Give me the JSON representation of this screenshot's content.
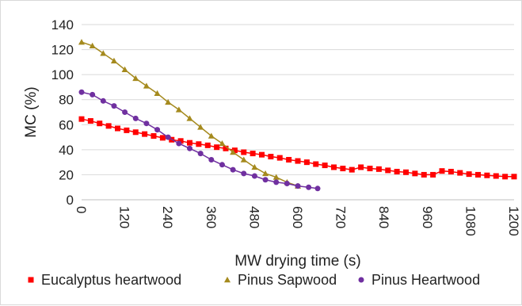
{
  "chart_data": {
    "type": "scatter",
    "title": "",
    "xlabel": "MW drying time (s)",
    "ylabel": "MC (%)",
    "xlim": [
      0,
      1200
    ],
    "ylim": [
      0,
      140
    ],
    "xticks": [
      0,
      120,
      240,
      360,
      480,
      600,
      720,
      840,
      960,
      1080,
      1200
    ],
    "yticks": [
      0,
      20,
      40,
      60,
      80,
      100,
      120,
      140
    ],
    "grid": "horizontal",
    "legend_position": "bottom",
    "trendlines": true,
    "series": [
      {
        "name": "Eucalyptus heartwood",
        "color": "#ff0000",
        "marker": "square",
        "x": [
          0,
          25,
          50,
          75,
          100,
          125,
          150,
          175,
          200,
          225,
          250,
          275,
          300,
          325,
          350,
          375,
          400,
          425,
          450,
          475,
          500,
          525,
          550,
          575,
          600,
          625,
          650,
          675,
          700,
          725,
          750,
          775,
          800,
          825,
          850,
          875,
          900,
          925,
          950,
          975,
          1000,
          1025,
          1050,
          1075,
          1100,
          1125,
          1150,
          1175,
          1200
        ],
        "y": [
          64.5,
          63,
          61,
          59,
          57,
          55.5,
          54,
          52.5,
          51,
          49.5,
          48,
          47,
          45.5,
          44.5,
          43.5,
          42,
          41,
          39.5,
          38,
          37,
          36,
          34.5,
          33.5,
          32,
          31,
          30,
          28.5,
          27.5,
          26,
          25,
          24,
          26,
          25,
          24.5,
          23.5,
          22.5,
          22,
          21,
          20,
          20,
          23,
          22.5,
          21.5,
          20.5,
          20,
          19.5,
          19,
          18.5,
          18.5
        ]
      },
      {
        "name": "Pinus Sapwood",
        "color": "#a58a1e",
        "marker": "triangle",
        "x": [
          0,
          30,
          60,
          90,
          120,
          150,
          180,
          210,
          240,
          270,
          300,
          330,
          360,
          390,
          420,
          450,
          480,
          510,
          540,
          570,
          600
        ],
        "y": [
          126,
          123,
          117,
          111,
          104,
          97,
          91,
          85,
          78,
          72,
          65,
          58,
          51,
          45,
          38,
          32,
          26,
          21,
          18,
          14,
          11
        ]
      },
      {
        "name": "Pinus Heartwood",
        "color": "#7030a0",
        "marker": "circle",
        "x": [
          0,
          30,
          60,
          90,
          120,
          150,
          180,
          210,
          240,
          270,
          300,
          330,
          360,
          390,
          420,
          450,
          480,
          510,
          540,
          570,
          600,
          630,
          655
        ],
        "y": [
          86,
          84,
          79,
          75,
          70,
          65,
          61,
          56,
          50,
          45,
          41,
          37,
          32,
          28,
          24,
          21,
          19,
          16,
          14,
          13,
          11,
          10,
          9
        ]
      }
    ]
  }
}
